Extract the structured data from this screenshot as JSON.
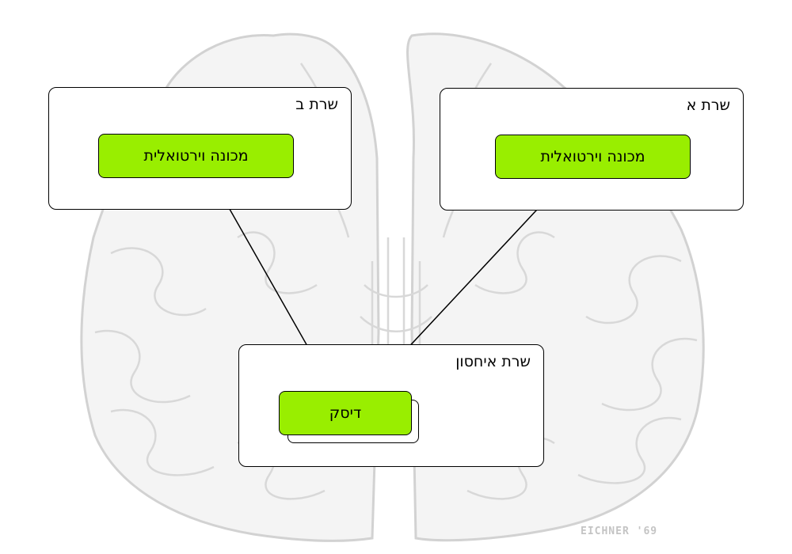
{
  "servers": [
    {
      "label": "שרת ב",
      "vm_label": "מכונה וירטואלית"
    },
    {
      "label": "שרת א",
      "vm_label": "מכונה וירטואלית"
    }
  ],
  "storage": {
    "label": "שרת איחסון",
    "disk_label": "דיסק"
  },
  "signature": "EICHNER '69",
  "colors": {
    "vm_fill": "#99ee00",
    "border": "#000000",
    "background_art": "#d6d6d6"
  }
}
